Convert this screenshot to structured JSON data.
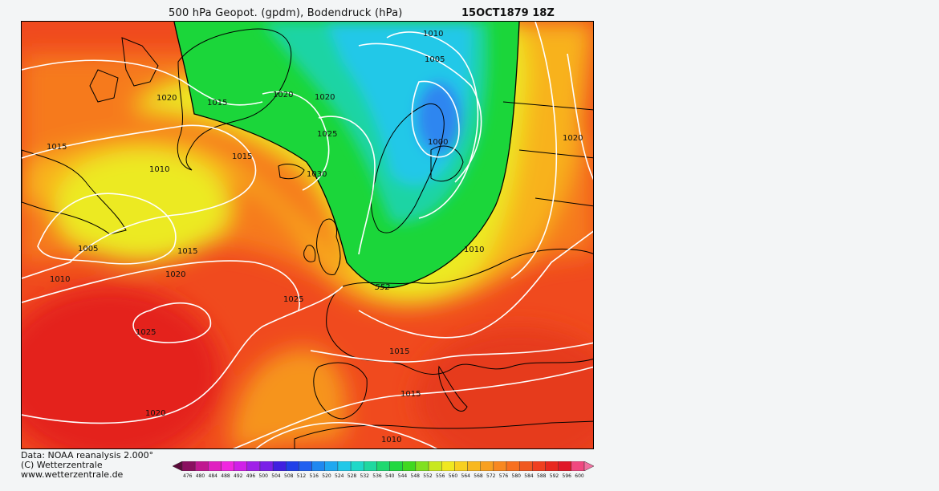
{
  "header": {
    "title": "500 hPa Geopot. (gpdm), Bodendruck (hPa)",
    "date": "15OCT1879 18Z"
  },
  "map": {
    "geopotential_contour_label": "552",
    "isobar_labels": [
      "1010",
      "1005",
      "1020",
      "1015",
      "1020",
      "1020",
      "1025",
      "1000",
      "1020",
      "1015",
      "1015",
      "1010",
      "1030",
      "1005",
      "1015",
      "1010",
      "1020",
      "1025",
      "1010",
      "1025",
      "1015",
      "1015",
      "1020",
      "1010"
    ],
    "colors": {
      "deep_red": "#e4221b",
      "red_orange": "#f04a1e",
      "orange": "#f67a1a",
      "yellow_orange": "#f8b21e",
      "yellow": "#ecea22",
      "green": "#1bd63a",
      "teal": "#1fd4a4",
      "cyan": "#23c8e8",
      "blue": "#2f86f0",
      "land_outline": "#000000",
      "isobar": "#ffffff"
    }
  },
  "footer": {
    "line1": "Data: NOAA reanalysis 2.000°",
    "line2": "(C) Wetterzentrale",
    "line3": "www.wetterzentrale.de"
  },
  "colorbar": {
    "labels": [
      "476",
      "480",
      "484",
      "488",
      "492",
      "496",
      "500",
      "504",
      "508",
      "512",
      "516",
      "520",
      "524",
      "528",
      "532",
      "536",
      "540",
      "544",
      "548",
      "552",
      "556",
      "560",
      "564",
      "568",
      "572",
      "576",
      "580",
      "584",
      "588",
      "592",
      "596",
      "600"
    ],
    "colors": [
      "#5a0a3a",
      "#8a1060",
      "#c01890",
      "#e020c0",
      "#f028e0",
      "#d020e8",
      "#a020e8",
      "#7a20e8",
      "#4020e0",
      "#2040e8",
      "#2060f0",
      "#2088f0",
      "#20a8f0",
      "#20c8e8",
      "#20d8c8",
      "#20d8a0",
      "#20d870",
      "#20d840",
      "#40d820",
      "#80e020",
      "#c8e820",
      "#f0e820",
      "#f8d020",
      "#f8b820",
      "#f8a020",
      "#f88820",
      "#f87020",
      "#f05820",
      "#f04020",
      "#e82820",
      "#e01828",
      "#f04880",
      "#f070a0"
    ]
  }
}
